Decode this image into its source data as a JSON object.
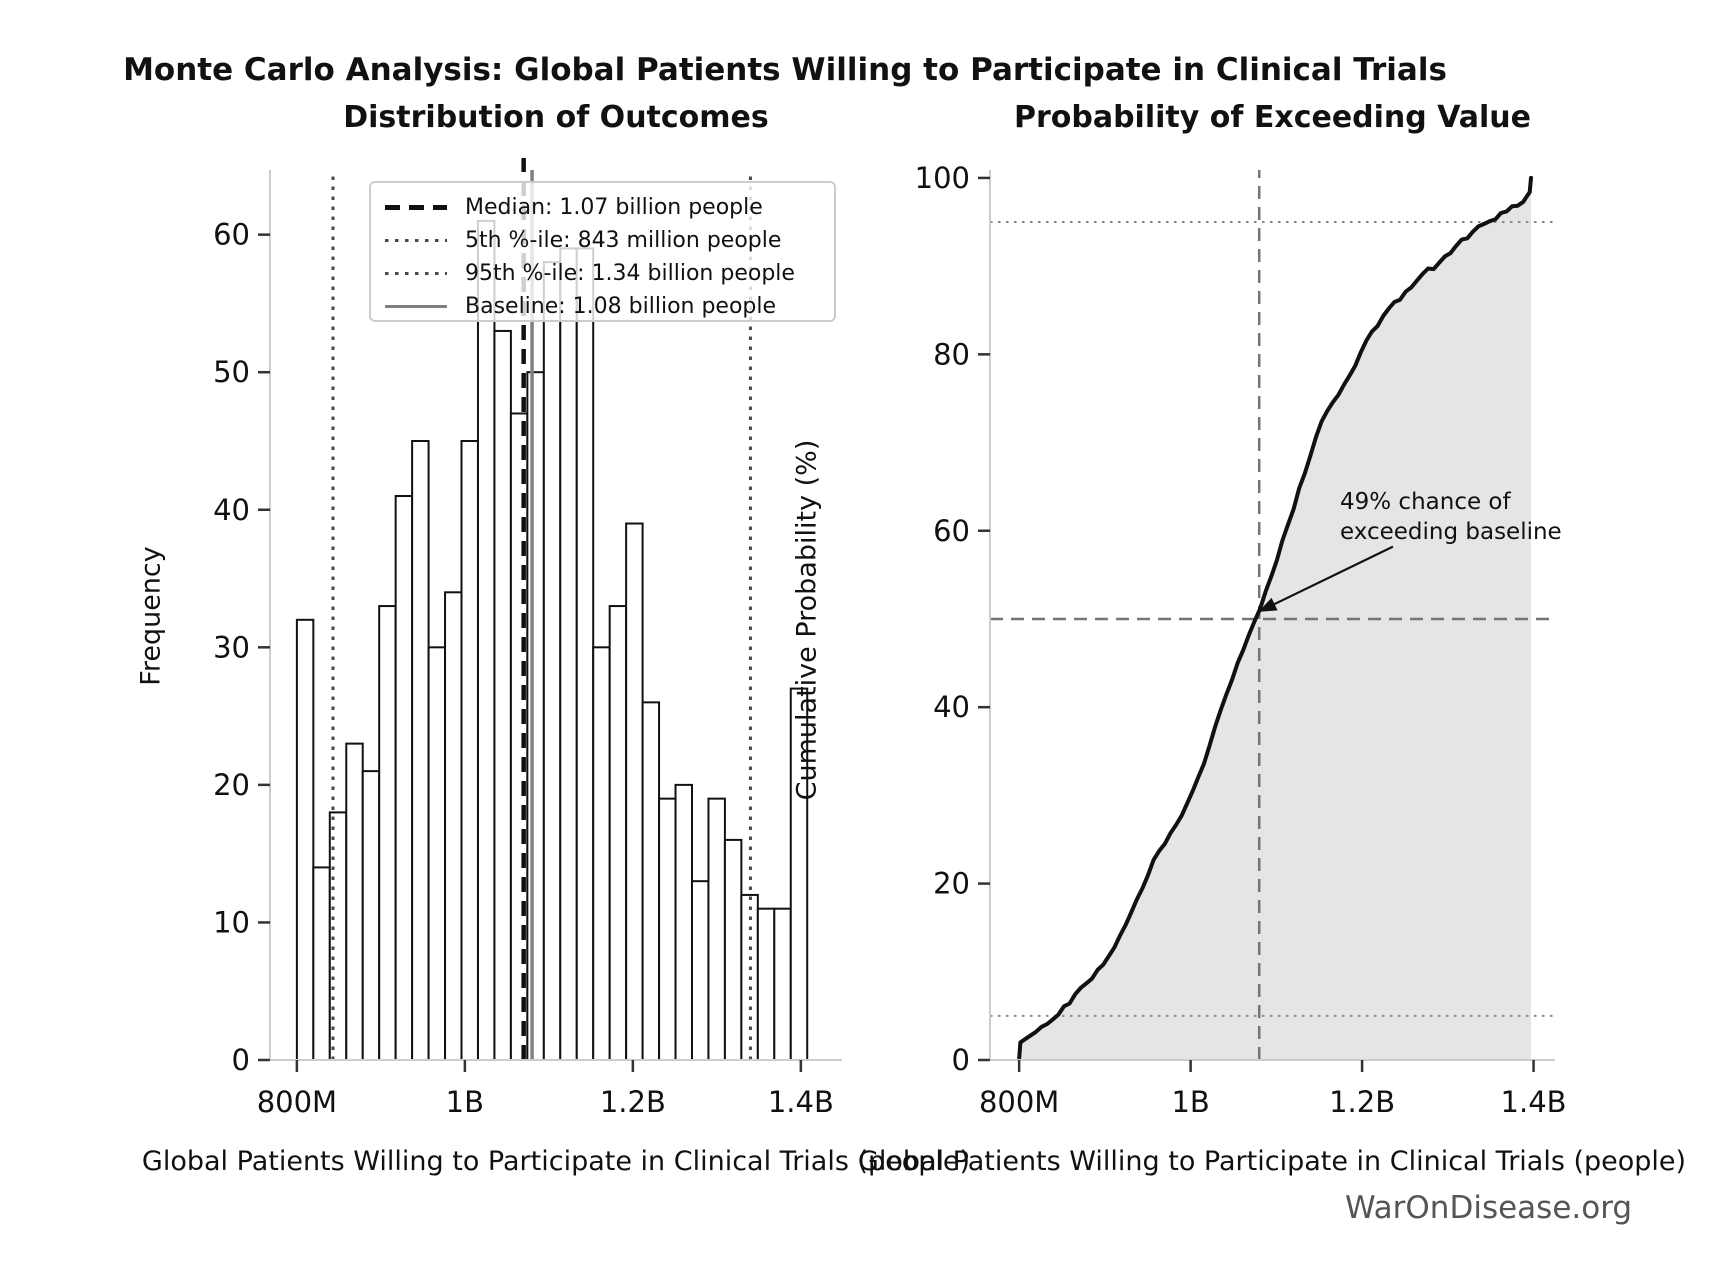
{
  "page": {
    "title": "Monte Carlo Analysis: Global Patients Willing to Participate in Clinical Trials",
    "watermark": "WarOnDisease.org"
  },
  "colors": {
    "bar_fill": "#ffffff",
    "bar_edge": "#111111",
    "median_line": "#111111",
    "percentile_line": "#484848",
    "baseline_line": "#808080",
    "curve": "#111111",
    "fill_area": "#e5e5e5",
    "ref_dotted": "#8a8a8a",
    "ref_dashed": "#757575",
    "spine": "#cccccc",
    "tick": "#333333",
    "text": "#111111",
    "watermark": "#555555"
  },
  "chart_data": [
    {
      "type": "bar",
      "subtype": "histogram",
      "title": "Distribution of Outcomes",
      "xlabel": "Global Patients Willing to Participate in Clinical Trials (people)",
      "ylabel": "Frequency",
      "x_ticks": [
        {
          "millions": 800,
          "label": "800M"
        },
        {
          "millions": 1000,
          "label": "1B"
        },
        {
          "millions": 1200,
          "label": "1.2B"
        },
        {
          "millions": 1400,
          "label": "1.4B"
        }
      ],
      "y_ticks": [
        0,
        10,
        20,
        30,
        40,
        50,
        60
      ],
      "xlim_millions": [
        768,
        1449
      ],
      "ylim": [
        0,
        64.7
      ],
      "grid": false,
      "bins": {
        "start_millions": 800,
        "width_millions": 19.6,
        "count": 31
      },
      "frequencies": [
        32,
        14,
        18,
        23,
        21,
        33,
        41,
        45,
        30,
        34,
        45,
        61,
        53,
        47,
        50,
        58,
        59,
        59,
        30,
        33,
        39,
        26,
        19,
        20,
        13,
        19,
        16,
        12,
        11,
        11,
        27
      ],
      "markers": {
        "median": {
          "value_millions": 1070,
          "label": "Median: 1.07 billion people",
          "style": "dashed-black"
        },
        "p5": {
          "value_millions": 843,
          "label": "5th %-ile: 843 million people",
          "style": "dotted-gray"
        },
        "p95": {
          "value_millions": 1340,
          "label": "95th %-ile: 1.34 billion people",
          "style": "dotted-gray"
        },
        "baseline": {
          "value_millions": 1080,
          "label": "Baseline: 1.08 billion people",
          "style": "solid-gray"
        }
      },
      "legend_position": "upper-left-inside"
    },
    {
      "type": "line",
      "subtype": "empirical-cdf",
      "title": "Probability of Exceeding Value",
      "xlabel": "Global Patients Willing to Participate in Clinical Trials (people)",
      "ylabel": "Cumulative Probability (%)",
      "x_ticks": [
        {
          "millions": 800,
          "label": "800M"
        },
        {
          "millions": 1000,
          "label": "1B"
        },
        {
          "millions": 1200,
          "label": "1.2B"
        },
        {
          "millions": 1400,
          "label": "1.4B"
        }
      ],
      "y_ticks": [
        0,
        20,
        40,
        60,
        80,
        100
      ],
      "xlim_millions": [
        766,
        1425
      ],
      "ylim": [
        0,
        100.9
      ],
      "grid": false,
      "fill_under_curve": true,
      "curve_points_millions_percent": [
        [
          800,
          0.2
        ],
        [
          801.5,
          2.0
        ],
        [
          819.6,
          3.2
        ],
        [
          839.2,
          4.6
        ],
        [
          858.8,
          6.4
        ],
        [
          878.4,
          8.7
        ],
        [
          898.0,
          10.8
        ],
        [
          917.6,
          14.1
        ],
        [
          937.2,
          18.2
        ],
        [
          956.8,
          22.7
        ],
        [
          976.4,
          25.7
        ],
        [
          996.0,
          29.1
        ],
        [
          1015.6,
          33.6
        ],
        [
          1035.2,
          39.7
        ],
        [
          1054.8,
          45.0
        ],
        [
          1074.4,
          49.7
        ],
        [
          1094.0,
          54.8
        ],
        [
          1113.6,
          60.7
        ],
        [
          1133.2,
          66.5
        ],
        [
          1152.8,
          72.4
        ],
        [
          1172.4,
          75.4
        ],
        [
          1192.0,
          78.7
        ],
        [
          1211.6,
          82.6
        ],
        [
          1231.2,
          85.2
        ],
        [
          1250.8,
          87.1
        ],
        [
          1270.4,
          89.1
        ],
        [
          1290.0,
          90.4
        ],
        [
          1309.6,
          92.3
        ],
        [
          1329.2,
          93.9
        ],
        [
          1348.8,
          95.1
        ],
        [
          1368.4,
          96.2
        ],
        [
          1388.0,
          97.3
        ],
        [
          1395.5,
          98.4
        ],
        [
          1397.0,
          100.0
        ]
      ],
      "reference_lines": {
        "dotted_horizontal_percent": [
          5,
          95
        ],
        "dashed_horizontal_percent": 50,
        "dashed_vertical_millions": 1080
      },
      "annotation": {
        "line1": "49% chance of",
        "line2": "exceeding baseline",
        "arrow_from": {
          "millions": 1236,
          "percent": 58.2
        },
        "arrow_to": {
          "millions": 1079,
          "percent": 50.8
        }
      }
    }
  ]
}
